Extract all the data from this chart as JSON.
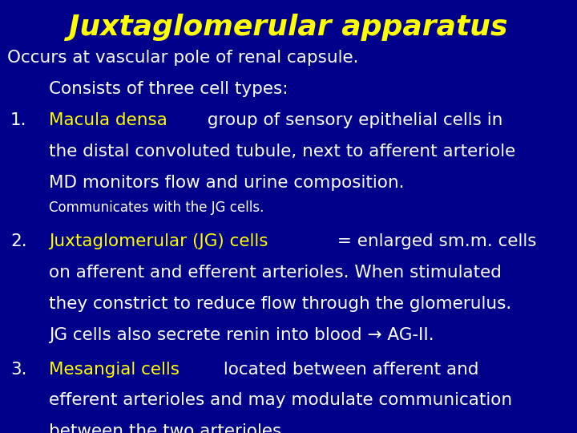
{
  "title": "Juxtaglomerular apparatus",
  "title_color": "#FFFF00",
  "title_fontsize": 26,
  "background_color": "#00008B",
  "white_color": "#FFFFFF",
  "yellow_color": "#FFFF00",
  "fs": 15.5,
  "fs_small": 12,
  "item1_yellow": "Macula densa",
  "item2_yellow": "Juxtaglomerular (JG) cells",
  "item3_yellow": "Mesangial cells"
}
